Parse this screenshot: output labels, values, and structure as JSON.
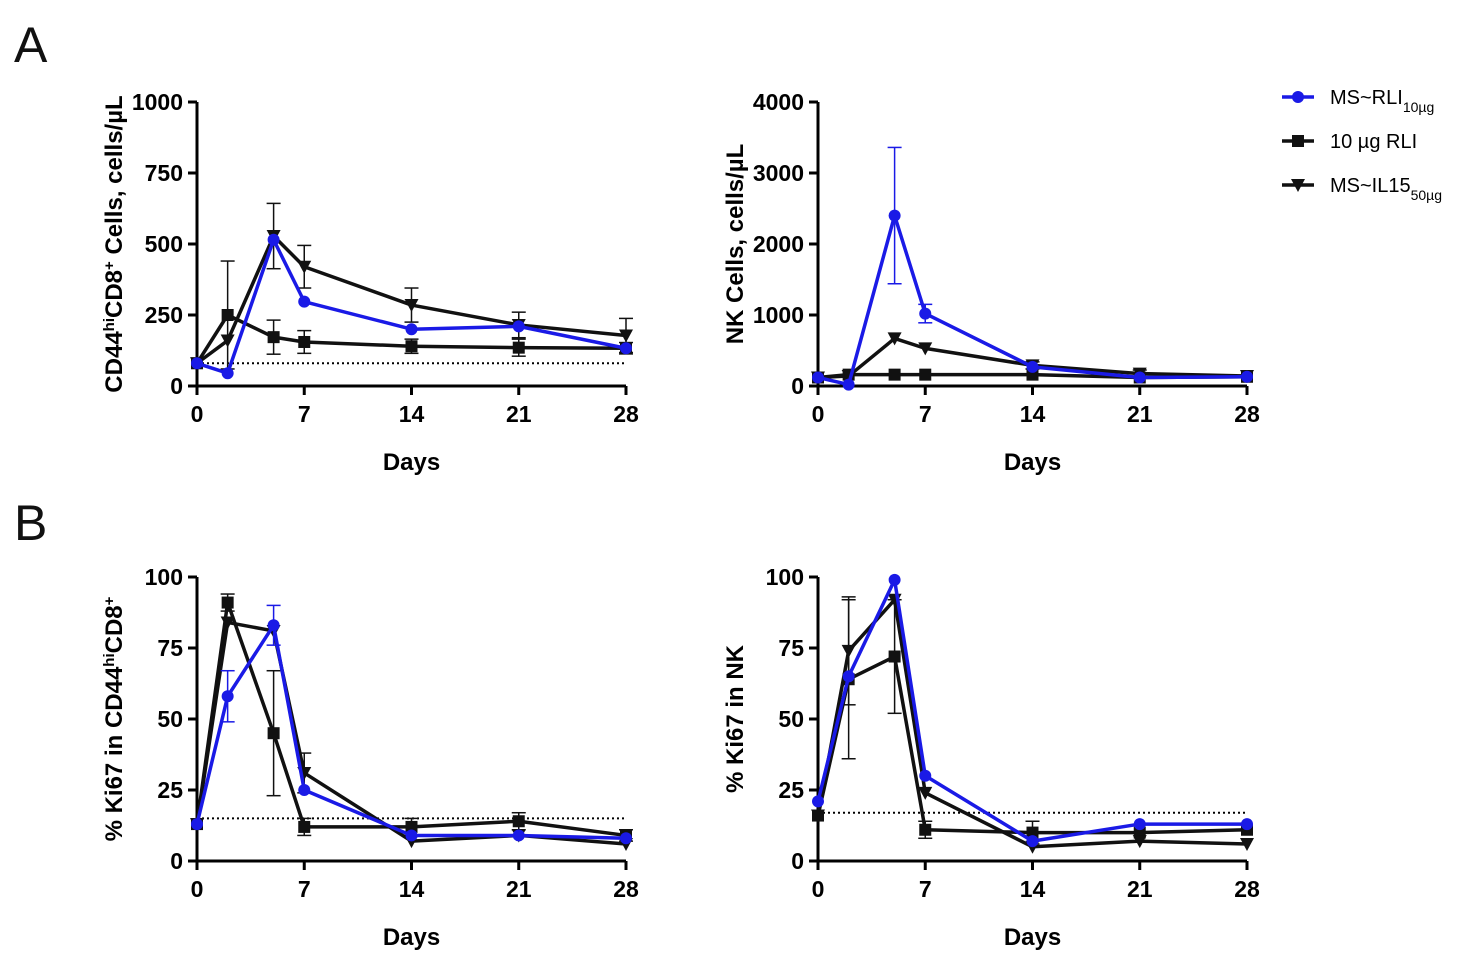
{
  "panels": {
    "a": "A",
    "b": "B"
  },
  "colors": {
    "ms_rli": "#1a1ae6",
    "rli": "#111111",
    "ms_il15": "#111111",
    "axis": "#000000"
  },
  "legend": [
    {
      "key": "ms_rli",
      "label": "MS~RLI",
      "sub": "10µg",
      "marker": "circle"
    },
    {
      "key": "rli",
      "label": "10 µg RLI",
      "sub": "",
      "marker": "square"
    },
    {
      "key": "ms_il15",
      "label": "MS~IL15",
      "sub": "50µg",
      "marker": "triangle-down"
    }
  ],
  "chart_data": [
    {
      "id": "cd8-count",
      "type": "line",
      "ylabel_main": "CD44",
      "ylabel_sup1": "hi",
      "ylabel_mid": "CD8",
      "ylabel_sup2": "+",
      "ylabel_end": " Cells, cells/µL",
      "xlabel": "Days",
      "xlim": [
        0,
        28
      ],
      "ylim": [
        0,
        1000
      ],
      "xticks": [
        0,
        7,
        14,
        21,
        28
      ],
      "yticks": [
        0,
        250,
        500,
        750,
        1000
      ],
      "baseline": 80,
      "series": [
        {
          "key": "rli",
          "name": "10 µg RLI",
          "x": [
            0,
            2,
            5,
            7,
            14,
            21,
            28
          ],
          "y": [
            80,
            250,
            172,
            155,
            140,
            135,
            133
          ],
          "err": [
            0,
            190,
            60,
            40,
            25,
            30,
            20
          ]
        },
        {
          "key": "ms_il15",
          "name": "MS~IL15",
          "x": [
            0,
            2,
            5,
            7,
            14,
            21,
            28
          ],
          "y": [
            80,
            160,
            528,
            420,
            285,
            215,
            178
          ],
          "err": [
            0,
            0,
            115,
            75,
            60,
            45,
            60
          ]
        },
        {
          "key": "ms_rli",
          "name": "MS~RLI",
          "x": [
            0,
            2,
            5,
            7,
            14,
            21,
            28
          ],
          "y": [
            80,
            45,
            515,
            297,
            200,
            210,
            133
          ],
          "err": [
            0,
            0,
            0,
            0,
            0,
            0,
            0
          ]
        }
      ]
    },
    {
      "id": "nk-count",
      "type": "line",
      "ylabel_main": "NK Cells,  cells/µL",
      "xlabel": "Days",
      "xlim": [
        0,
        28
      ],
      "ylim": [
        0,
        4000
      ],
      "xticks": [
        0,
        7,
        14,
        21,
        28
      ],
      "yticks": [
        0,
        1000,
        2000,
        3000,
        4000
      ],
      "baseline": null,
      "series": [
        {
          "key": "rli",
          "name": "10 µg RLI",
          "x": [
            0,
            2,
            5,
            7,
            14,
            21,
            28
          ],
          "y": [
            120,
            160,
            160,
            160,
            160,
            120,
            130
          ],
          "err": [
            0,
            0,
            0,
            0,
            0,
            0,
            0
          ]
        },
        {
          "key": "ms_il15",
          "name": "MS~IL15",
          "x": [
            0,
            2,
            5,
            7,
            14,
            21,
            28
          ],
          "y": [
            120,
            140,
            670,
            530,
            290,
            175,
            140
          ],
          "err": [
            0,
            0,
            0,
            0,
            50,
            50,
            0
          ]
        },
        {
          "key": "ms_rli",
          "name": "MS~RLI",
          "x": [
            0,
            2,
            5,
            7,
            14,
            21,
            28
          ],
          "y": [
            120,
            20,
            2400,
            1020,
            270,
            120,
            130
          ],
          "err": [
            0,
            0,
            960,
            130,
            0,
            0,
            0
          ]
        }
      ]
    },
    {
      "id": "ki67-cd8",
      "type": "line",
      "ylabel_main": "% Ki67 in CD44",
      "ylabel_sup1": "hi",
      "ylabel_mid": "CD8",
      "ylabel_sup2": "+",
      "ylabel_end": "",
      "xlabel": "Days",
      "xlim": [
        0,
        28
      ],
      "ylim": [
        0,
        100
      ],
      "xticks": [
        0,
        7,
        14,
        21,
        28
      ],
      "yticks": [
        0,
        25,
        50,
        75,
        100
      ],
      "baseline": 15,
      "series": [
        {
          "key": "rli",
          "name": "10 µg RLI",
          "x": [
            0,
            2,
            5,
            7,
            14,
            21,
            28
          ],
          "y": [
            13,
            91,
            45,
            12,
            12,
            14,
            9
          ],
          "err": [
            0,
            3,
            22,
            3,
            3,
            3,
            2
          ]
        },
        {
          "key": "ms_il15",
          "name": "MS~IL15",
          "x": [
            0,
            2,
            5,
            7,
            14,
            21,
            28
          ],
          "y": [
            13,
            84,
            81,
            31,
            7,
            9,
            6
          ],
          "err": [
            0,
            0,
            0,
            7,
            0,
            0,
            0
          ]
        },
        {
          "key": "ms_rli",
          "name": "MS~RLI",
          "x": [
            0,
            2,
            5,
            7,
            14,
            21,
            28
          ],
          "y": [
            13,
            58,
            83,
            25,
            9,
            9,
            8
          ],
          "err": [
            0,
            9,
            7,
            0,
            0,
            0,
            0
          ]
        }
      ]
    },
    {
      "id": "ki67-nk",
      "type": "line",
      "ylabel_main": "% Ki67 in NK",
      "xlabel": "Days",
      "xlim": [
        0,
        28
      ],
      "ylim": [
        0,
        100
      ],
      "xticks": [
        0,
        7,
        14,
        21,
        28
      ],
      "yticks": [
        0,
        25,
        50,
        75,
        100
      ],
      "baseline": 17,
      "series": [
        {
          "key": "rli",
          "name": "10 µg RLI",
          "x": [
            0,
            2,
            5,
            7,
            14,
            21,
            28
          ],
          "y": [
            16,
            64,
            72,
            11,
            10,
            10,
            11
          ],
          "err": [
            0,
            28,
            20,
            3,
            4,
            0,
            0
          ]
        },
        {
          "key": "ms_il15",
          "name": "MS~IL15",
          "x": [
            0,
            2,
            5,
            7,
            14,
            21,
            28
          ],
          "y": [
            16,
            74,
            92,
            24,
            5,
            7,
            6
          ],
          "err": [
            0,
            19,
            0,
            0,
            0,
            0,
            0
          ]
        },
        {
          "key": "ms_rli",
          "name": "MS~RLI",
          "x": [
            0,
            2,
            5,
            7,
            14,
            21,
            28
          ],
          "y": [
            21,
            65,
            99,
            30,
            7,
            13,
            13
          ],
          "err": [
            0,
            0,
            0,
            0,
            0,
            0,
            0
          ]
        }
      ]
    }
  ]
}
